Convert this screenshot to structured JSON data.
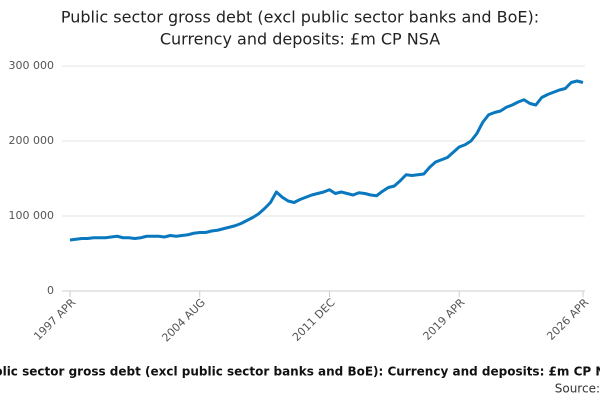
{
  "chart_data": {
    "type": "line",
    "title": [
      "Public sector gross debt (excl public sector banks and BoE):",
      "Currency and deposits: £m CP NSA"
    ],
    "x_label": "Public sector gross debt (excl public sector banks and BoE): Currency and deposits: £m CP NSA",
    "source": "Source:",
    "categories": [
      "1997 APR",
      null,
      null,
      null,
      null,
      null,
      null,
      null,
      null,
      null,
      null,
      null,
      null,
      null,
      null,
      null,
      null,
      null,
      null,
      null,
      null,
      null,
      "2004 AUG",
      null,
      null,
      null,
      null,
      null,
      null,
      null,
      null,
      null,
      null,
      null,
      null,
      null,
      null,
      null,
      null,
      null,
      null,
      null,
      null,
      null,
      "2011 DEC",
      null,
      null,
      null,
      null,
      null,
      null,
      null,
      null,
      null,
      null,
      null,
      null,
      null,
      null,
      null,
      null,
      null,
      null,
      null,
      null,
      null,
      "2019 APR",
      null,
      null,
      null,
      null,
      null,
      null,
      null,
      null,
      null,
      null,
      null,
      null,
      null,
      null,
      null,
      null,
      null,
      null,
      null,
      null,
      "2026 APR"
    ],
    "series": [
      {
        "color": "#0a78be",
        "values": [
          68000,
          69000,
          70000,
          70000,
          71000,
          71000,
          71000,
          72000,
          73000,
          71000,
          71000,
          70000,
          71000,
          73000,
          73000,
          73000,
          72000,
          74000,
          73000,
          74000,
          75000,
          77000,
          78000,
          78000,
          80000,
          81000,
          83000,
          85000,
          87000,
          90000,
          94000,
          98000,
          103000,
          110000,
          118000,
          132000,
          125000,
          120000,
          118000,
          122000,
          125000,
          128000,
          130000,
          132000,
          135000,
          130000,
          132000,
          130000,
          128000,
          131000,
          130000,
          128000,
          127000,
          133000,
          138000,
          140000,
          147000,
          155000,
          154000,
          155000,
          156000,
          165000,
          172000,
          175000,
          178000,
          185000,
          192000,
          195000,
          200000,
          210000,
          225000,
          235000,
          238000,
          240000,
          245000,
          248000,
          252000,
          255000,
          250000,
          248000,
          258000,
          262000,
          265000,
          268000,
          270000,
          278000,
          280000,
          278000
        ]
      }
    ],
    "ylim": [
      0,
      300000
    ],
    "yticks": [
      0,
      {
        "value": 100000,
        "label": "100 000"
      },
      {
        "value": 200000,
        "label": "200 000"
      },
      {
        "value": 300000,
        "label": "300 000"
      }
    ],
    "grid": true
  }
}
